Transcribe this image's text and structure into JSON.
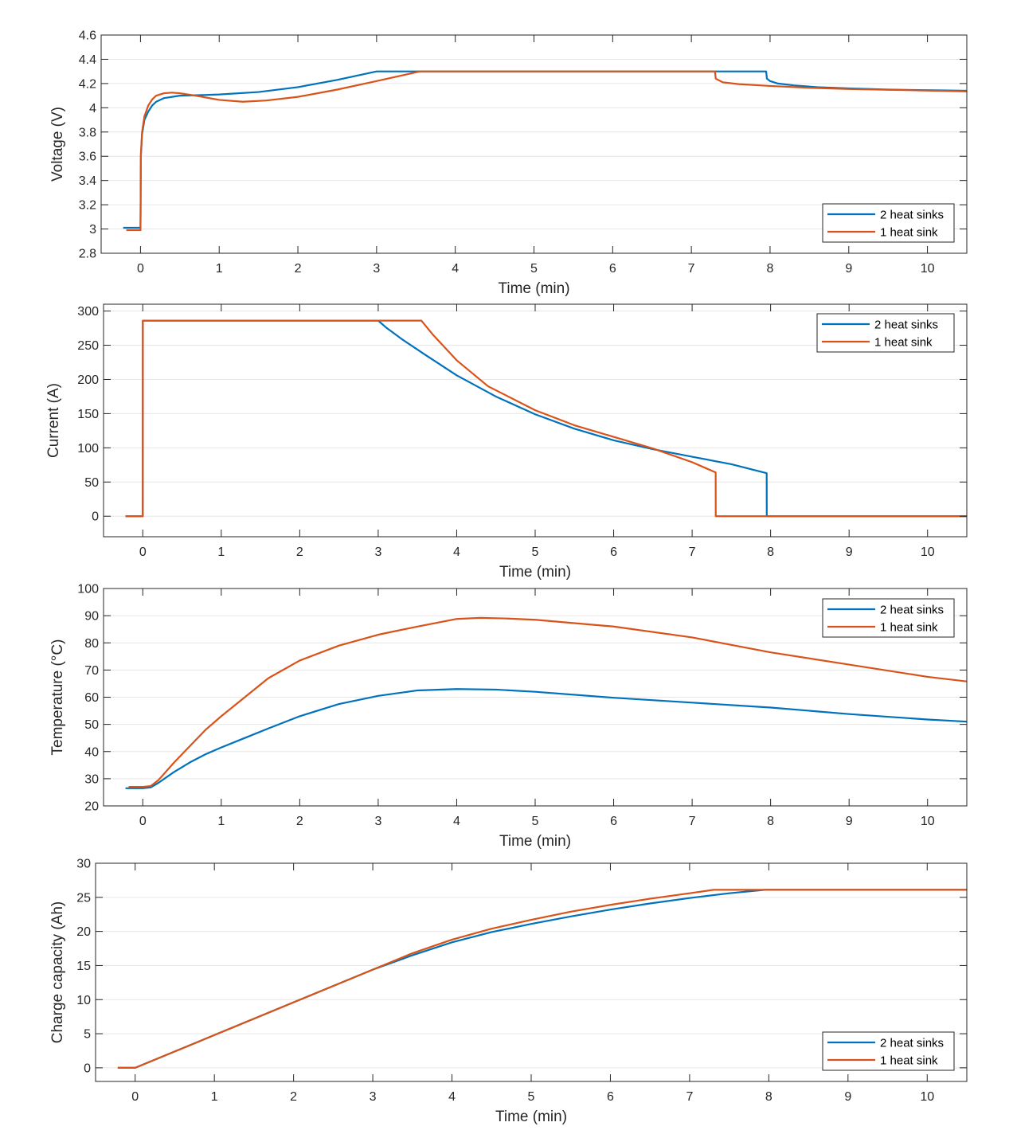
{
  "colors": {
    "two_heat_sinks": "#0072BD",
    "one_heat_sink": "#D95319",
    "grid": "#e6e6e6",
    "axis": "#262626"
  },
  "chart_data": [
    {
      "type": "line",
      "xlabel": "Time (min)",
      "ylabel": "Voltage (V)",
      "xlim": [
        -0.5,
        10.5
      ],
      "ylim": [
        2.8,
        4.6
      ],
      "xticks": [
        0,
        1,
        2,
        3,
        4,
        5,
        6,
        7,
        8,
        9,
        10
      ],
      "yticks": [
        2.8,
        3,
        3.2,
        3.4,
        3.6,
        3.8,
        4,
        4.2,
        4.4,
        4.6
      ],
      "ytick_labels": [
        "2.8",
        "3",
        "3.2",
        "3.4",
        "3.6",
        "3.8",
        "4",
        "4.2",
        "4.4",
        "4.6"
      ],
      "grid": "horizontal",
      "legend": "bottom-right",
      "series": [
        {
          "name": "2 heat sinks",
          "x": [
            -0.22,
            0.0,
            0.005,
            0.02,
            0.05,
            0.1,
            0.15,
            0.2,
            0.3,
            0.5,
            0.8,
            1.0,
            1.5,
            2.0,
            2.5,
            3.0,
            3.5,
            4.0,
            5.0,
            6.0,
            7.0,
            7.95,
            7.96,
            8.0,
            8.1,
            8.3,
            8.6,
            9.0,
            9.5,
            10.0,
            10.5
          ],
          "y": [
            3.01,
            3.01,
            3.6,
            3.78,
            3.9,
            3.97,
            4.02,
            4.05,
            4.08,
            4.1,
            4.105,
            4.11,
            4.13,
            4.17,
            4.23,
            4.3,
            4.3,
            4.3,
            4.3,
            4.3,
            4.3,
            4.3,
            4.24,
            4.22,
            4.2,
            4.185,
            4.17,
            4.16,
            4.15,
            4.145,
            4.14
          ]
        },
        {
          "name": "1 heat sink",
          "x": [
            -0.18,
            0.0,
            0.005,
            0.02,
            0.05,
            0.1,
            0.15,
            0.2,
            0.3,
            0.4,
            0.5,
            0.7,
            1.0,
            1.3,
            1.6,
            2.0,
            2.5,
            3.0,
            3.55,
            4.0,
            5.0,
            6.0,
            7.0,
            7.3,
            7.31,
            7.4,
            7.6,
            8.0,
            8.5,
            9.0,
            9.5,
            10.0,
            10.5
          ],
          "y": [
            2.99,
            2.99,
            3.62,
            3.8,
            3.93,
            4.02,
            4.07,
            4.1,
            4.12,
            4.125,
            4.12,
            4.1,
            4.065,
            4.05,
            4.06,
            4.09,
            4.15,
            4.22,
            4.3,
            4.3,
            4.3,
            4.3,
            4.3,
            4.3,
            4.24,
            4.21,
            4.195,
            4.18,
            4.165,
            4.155,
            4.148,
            4.142,
            4.135
          ]
        }
      ]
    },
    {
      "type": "line",
      "xlabel": "Time (min)",
      "ylabel": "Current (A)",
      "xlim": [
        -0.5,
        10.5
      ],
      "ylim": [
        -30,
        310
      ],
      "xticks": [
        0,
        1,
        2,
        3,
        4,
        5,
        6,
        7,
        8,
        9,
        10
      ],
      "yticks": [
        0,
        50,
        100,
        150,
        200,
        250,
        300
      ],
      "ytick_labels": [
        "0",
        "50",
        "100",
        "150",
        "200",
        "250",
        "300"
      ],
      "grid": "horizontal",
      "legend": "top-right",
      "series": [
        {
          "name": "2 heat sinks",
          "x": [
            -0.22,
            0.0,
            0.001,
            3.0,
            3.1,
            3.3,
            3.6,
            4.0,
            4.5,
            5.0,
            5.5,
            6.0,
            6.5,
            7.0,
            7.5,
            7.95,
            7.951,
            10.5
          ],
          "y": [
            0,
            0,
            286,
            286,
            276,
            259,
            236,
            206,
            175,
            149,
            128,
            111,
            98,
            87,
            76,
            63,
            0,
            0
          ]
        },
        {
          "name": "1 heat sink",
          "x": [
            -0.22,
            0.0,
            0.001,
            3.55,
            3.7,
            4.0,
            4.4,
            5.0,
            5.5,
            6.0,
            6.5,
            7.0,
            7.3,
            7.301,
            10.5
          ],
          "y": [
            0,
            0,
            286,
            286,
            265,
            228,
            190,
            155,
            133,
            116,
            99,
            79,
            64,
            0,
            0
          ]
        }
      ]
    },
    {
      "type": "line",
      "xlabel": "Time (min)",
      "ylabel": "Temperature (°C)",
      "xlim": [
        -0.5,
        10.5
      ],
      "ylim": [
        20,
        100
      ],
      "xticks": [
        0,
        1,
        2,
        3,
        4,
        5,
        6,
        7,
        8,
        9,
        10
      ],
      "yticks": [
        20,
        30,
        40,
        50,
        60,
        70,
        80,
        90,
        100
      ],
      "ytick_labels": [
        "20",
        "30",
        "40",
        "50",
        "60",
        "70",
        "80",
        "90",
        "100"
      ],
      "grid": "horizontal",
      "legend": "top-right",
      "series": [
        {
          "name": "2 heat sinks",
          "x": [
            -0.22,
            0.0,
            0.1,
            0.2,
            0.4,
            0.6,
            0.8,
            1.0,
            1.3,
            1.6,
            2.0,
            2.5,
            3.0,
            3.5,
            4.0,
            4.5,
            5.0,
            6.0,
            7.0,
            8.0,
            9.0,
            10.0,
            10.5
          ],
          "y": [
            26.5,
            26.5,
            26.8,
            28.5,
            32.5,
            36,
            39,
            41.5,
            45,
            48.5,
            53,
            57.5,
            60.5,
            62.5,
            63,
            62.8,
            62,
            59.8,
            58,
            56.2,
            53.8,
            51.8,
            51
          ]
        },
        {
          "name": "1 heat sink",
          "x": [
            -0.18,
            0.0,
            0.1,
            0.2,
            0.4,
            0.6,
            0.8,
            1.0,
            1.3,
            1.6,
            2.0,
            2.5,
            3.0,
            3.5,
            4.0,
            4.3,
            4.6,
            5.0,
            6.0,
            7.0,
            8.0,
            9.0,
            10.0,
            10.5
          ],
          "y": [
            27,
            27,
            27.3,
            29.5,
            36,
            42,
            48,
            53,
            60,
            67,
            73.5,
            79,
            83,
            86,
            88.8,
            89.2,
            89,
            88.5,
            86,
            82,
            76.5,
            72,
            67.5,
            65.8
          ]
        }
      ]
    },
    {
      "type": "line",
      "xlabel": "Time (min)",
      "ylabel": "Charge capacity (Ah)",
      "xlim": [
        -0.5,
        10.5
      ],
      "ylim": [
        -2,
        30
      ],
      "xticks": [
        0,
        1,
        2,
        3,
        4,
        5,
        6,
        7,
        8,
        9,
        10
      ],
      "yticks": [
        0,
        5,
        10,
        15,
        20,
        25,
        30
      ],
      "ytick_labels": [
        "0",
        "5",
        "10",
        "15",
        "20",
        "25",
        "30"
      ],
      "grid": "horizontal",
      "legend": "bottom-right",
      "series": [
        {
          "name": "2 heat sinks",
          "x": [
            -0.22,
            0.0,
            1.0,
            2.0,
            3.0,
            3.5,
            4.0,
            4.5,
            5.0,
            5.5,
            6.0,
            6.5,
            7.0,
            7.5,
            7.95,
            10.5
          ],
          "y": [
            0,
            0,
            4.8,
            9.6,
            14.4,
            16.5,
            18.4,
            19.9,
            21.1,
            22.2,
            23.2,
            24.1,
            24.9,
            25.6,
            26.1,
            26.1
          ]
        },
        {
          "name": "1 heat sink",
          "x": [
            -0.22,
            0.0,
            1.0,
            2.0,
            3.0,
            3.5,
            4.0,
            4.5,
            5.0,
            5.5,
            6.0,
            6.5,
            7.0,
            7.3,
            10.5
          ],
          "y": [
            0,
            0,
            4.8,
            9.6,
            14.4,
            16.8,
            18.8,
            20.4,
            21.7,
            22.9,
            23.9,
            24.8,
            25.6,
            26.1,
            26.1
          ]
        }
      ]
    }
  ]
}
